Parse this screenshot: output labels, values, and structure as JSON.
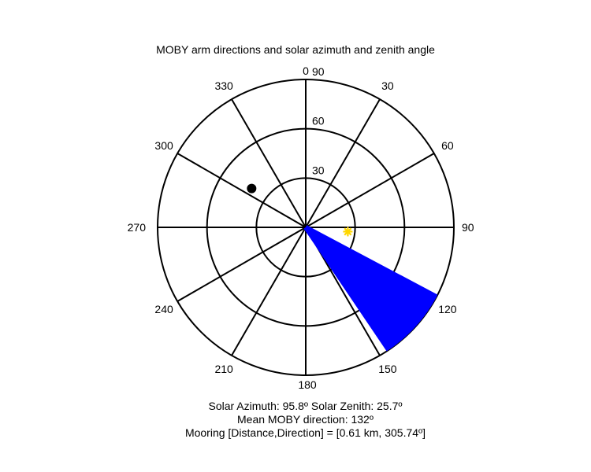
{
  "chart_data": {
    "type": "polar",
    "title": "MOBY arm directions and solar azimuth and zenith angle",
    "angle_ticks": [
      "0",
      "30",
      "60",
      "90",
      "120",
      "150",
      "180",
      "210",
      "240",
      "270",
      "300",
      "330"
    ],
    "radial_ticks": [
      "30",
      "60",
      "90"
    ],
    "radial_max": 90,
    "moby_arm_directions_deg": [
      118,
      119,
      120,
      121,
      122,
      123,
      124,
      125,
      126,
      127,
      128,
      129,
      130,
      131,
      132,
      133,
      134,
      135,
      136,
      137,
      138,
      139,
      140,
      141,
      142,
      143,
      144,
      145,
      146
    ],
    "solar_point": {
      "azimuth": 95.8,
      "zenith": 25.7,
      "color": "#ffd700",
      "marker": "asterisk"
    },
    "mooring_point": {
      "direction": 305.74,
      "radius": 40.5,
      "color": "#000000",
      "marker": "filled-circle"
    },
    "arm_color": "#0000ff"
  },
  "captions": {
    "line1": "Solar Azimuth: 95.8º    Solar Zenith: 25.7º",
    "line2": "Mean MOBY direction: 132º",
    "line3": "Mooring [Distance,Direction] = [0.61 km, 305.74º]"
  }
}
